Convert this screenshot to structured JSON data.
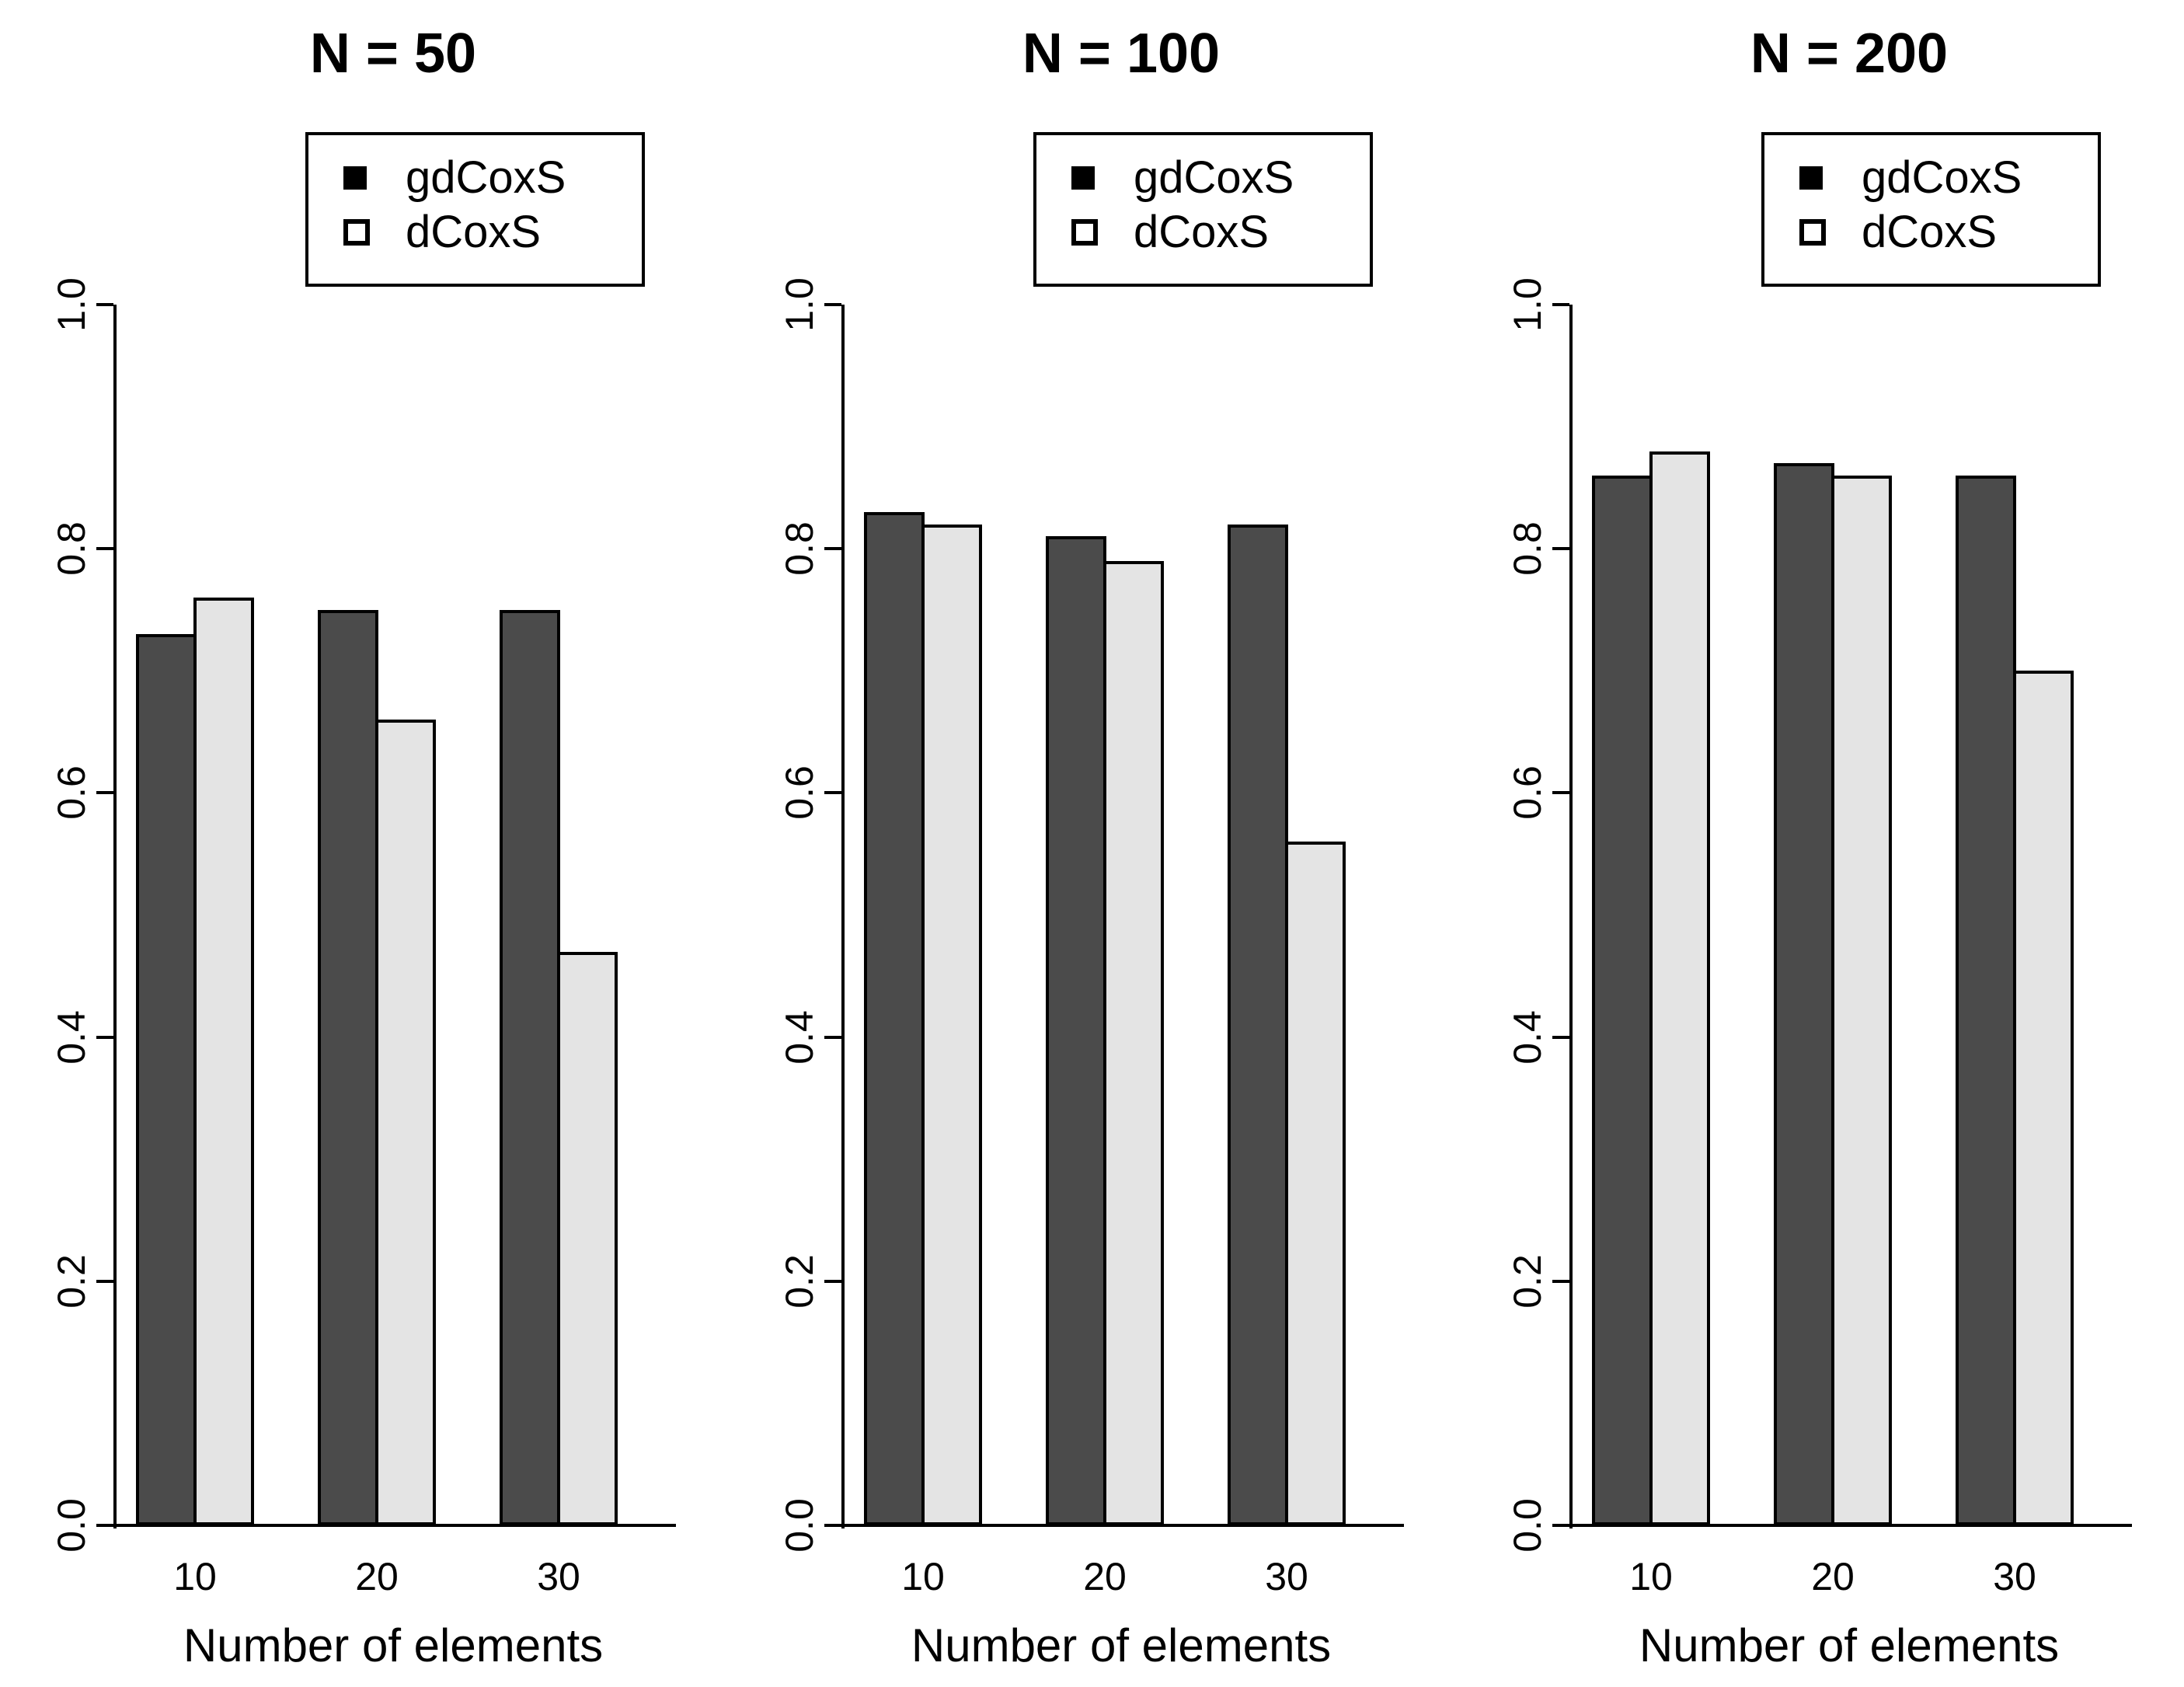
{
  "figure": {
    "background": "#ffffff",
    "axis_color": "#000000",
    "bar_border_color": "#000000"
  },
  "legend": {
    "items": [
      {
        "label": "gdCoxS",
        "swatch": "filled-square",
        "fill": "#000000"
      },
      {
        "label": "dCoxS",
        "swatch": "open-square",
        "fill": "#ffffff"
      }
    ]
  },
  "y_axis": {
    "min": 0.0,
    "max": 1.0,
    "tick_labels": [
      "0.0",
      "0.2",
      "0.4",
      "0.6",
      "0.8",
      "1.0"
    ]
  },
  "x_axis": {
    "label": "Number of elements",
    "categories": [
      "10",
      "20",
      "30"
    ]
  },
  "chart_data": [
    {
      "type": "bar",
      "title": "N = 50",
      "categories": [
        "10",
        "20",
        "30"
      ],
      "series": [
        {
          "name": "gdCoxS",
          "color": "#4b4b4b",
          "values": [
            0.73,
            0.75,
            0.75
          ]
        },
        {
          "name": "dCoxS",
          "color": "#e4e4e4",
          "values": [
            0.76,
            0.66,
            0.47
          ]
        }
      ],
      "xlabel": "Number of elements",
      "ylabel": "",
      "ylim": [
        0.0,
        1.0
      ],
      "yticks": [
        0.0,
        0.2,
        0.4,
        0.6,
        0.8,
        1.0
      ],
      "grid": false,
      "legend_position": "top"
    },
    {
      "type": "bar",
      "title": "N = 100",
      "categories": [
        "10",
        "20",
        "30"
      ],
      "series": [
        {
          "name": "gdCoxS",
          "color": "#4b4b4b",
          "values": [
            0.83,
            0.81,
            0.82
          ]
        },
        {
          "name": "dCoxS",
          "color": "#e4e4e4",
          "values": [
            0.82,
            0.79,
            0.56
          ]
        }
      ],
      "xlabel": "Number of elements",
      "ylabel": "",
      "ylim": [
        0.0,
        1.0
      ],
      "yticks": [
        0.0,
        0.2,
        0.4,
        0.6,
        0.8,
        1.0
      ],
      "grid": false,
      "legend_position": "top"
    },
    {
      "type": "bar",
      "title": "N = 200",
      "categories": [
        "10",
        "20",
        "30"
      ],
      "series": [
        {
          "name": "gdCoxS",
          "color": "#4b4b4b",
          "values": [
            0.86,
            0.87,
            0.86
          ]
        },
        {
          "name": "dCoxS",
          "color": "#e4e4e4",
          "values": [
            0.88,
            0.86,
            0.7
          ]
        }
      ],
      "xlabel": "Number of elements",
      "ylabel": "",
      "ylim": [
        0.0,
        1.0
      ],
      "yticks": [
        0.0,
        0.2,
        0.4,
        0.6,
        0.8,
        1.0
      ],
      "grid": false,
      "legend_position": "top"
    }
  ]
}
